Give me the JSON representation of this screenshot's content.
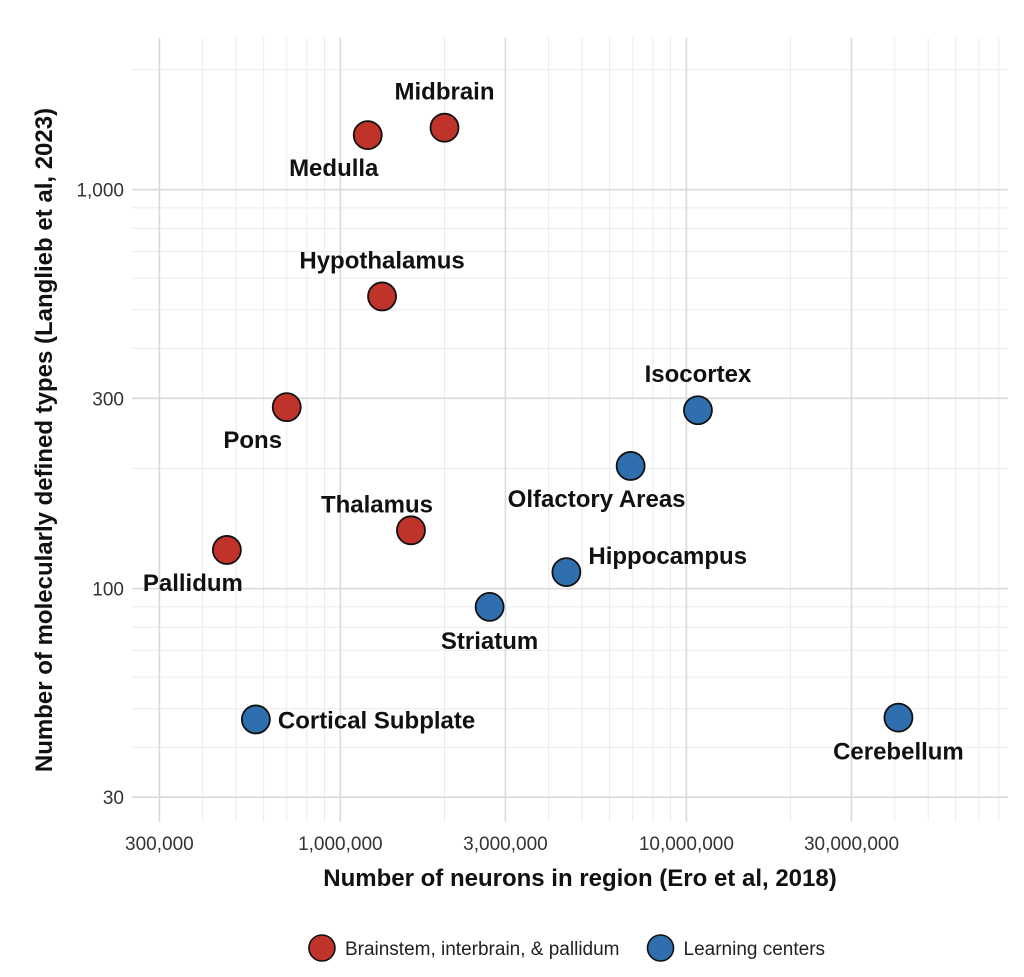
{
  "chart_data": {
    "type": "scatter",
    "xlabel": "Number of neurons in region (Ero et al, 2018)",
    "ylabel": "Number of molecularly defined types (Langlieb et al, 2023)",
    "x_scale": "log",
    "y_scale": "log",
    "xlim": [
      250000,
      85000000
    ],
    "ylim": [
      26,
      2400
    ],
    "x_ticks": [
      300000,
      1000000,
      3000000,
      10000000,
      30000000
    ],
    "x_tick_labels": [
      "300,000",
      "1,000,000",
      "3,000,000",
      "10,000,000",
      "30,000,000"
    ],
    "y_ticks": [
      30,
      100,
      300,
      1000
    ],
    "y_tick_labels": [
      "30",
      "100",
      "300",
      "1,000"
    ],
    "grid": true,
    "legend_position": "bottom",
    "series": [
      {
        "name": "Brainstem, interbrain, & pallidum",
        "color": "#c0332b",
        "points": [
          {
            "label": "Midbrain",
            "x": 2000000,
            "y": 1430,
            "label_pos": "above"
          },
          {
            "label": "Medulla",
            "x": 1200000,
            "y": 1370,
            "label_pos": "below-left"
          },
          {
            "label": "Hypothalamus",
            "x": 1320000,
            "y": 540,
            "label_pos": "above"
          },
          {
            "label": "Pons",
            "x": 700000,
            "y": 285,
            "label_pos": "below-left"
          },
          {
            "label": "Thalamus",
            "x": 1600000,
            "y": 140,
            "label_pos": "above-left"
          },
          {
            "label": "Pallidum",
            "x": 470000,
            "y": 125,
            "label_pos": "below-left"
          }
        ]
      },
      {
        "name": "Learning centers",
        "color": "#2f6fae",
        "points": [
          {
            "label": "Isocortex",
            "x": 10800000,
            "y": 280,
            "label_pos": "above"
          },
          {
            "label": "Olfactory Areas",
            "x": 6900000,
            "y": 203,
            "label_pos": "below-left"
          },
          {
            "label": "Hippocampus",
            "x": 4500000,
            "y": 110,
            "label_pos": "right-up"
          },
          {
            "label": "Striatum",
            "x": 2700000,
            "y": 90,
            "label_pos": "below"
          },
          {
            "label": "Cortical Subplate",
            "x": 570000,
            "y": 47,
            "label_pos": "right"
          },
          {
            "label": "Cerebellum",
            "x": 41000000,
            "y": 47.5,
            "label_pos": "below"
          }
        ]
      }
    ]
  }
}
